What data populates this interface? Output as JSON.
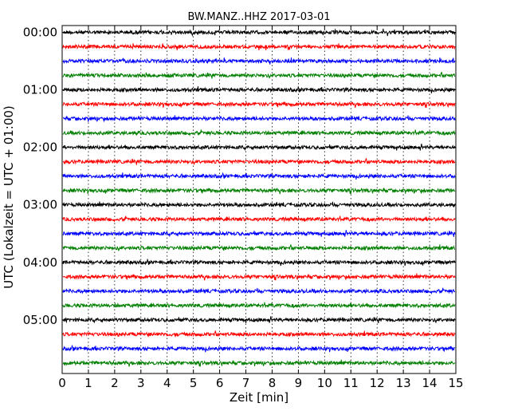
{
  "chart_data": {
    "type": "line",
    "title": "BW.MANZ..HHZ 2017-03-01",
    "xlabel": "Zeit  [min]",
    "ylabel": "UTC (Lokalzeit = UTC + 01:00)",
    "xlim": [
      0,
      15
    ],
    "x_ticks": [
      "0",
      "1",
      "2",
      "3",
      "4",
      "5",
      "6",
      "7",
      "8",
      "9",
      "10",
      "11",
      "12",
      "13",
      "14",
      "15"
    ],
    "y_tick_labels": [
      "00:00",
      "01:00",
      "02:00",
      "03:00",
      "04:00",
      "05:00"
    ],
    "rows_per_hour": 4,
    "row_start_minutes": [
      0,
      15,
      30,
      45,
      60,
      75,
      90,
      105,
      120,
      135,
      150,
      165,
      180,
      195,
      210,
      225,
      240,
      255,
      270,
      285,
      300,
      315,
      330,
      345
    ],
    "row_colors": [
      "#000000",
      "#ff0000",
      "#0000ff",
      "#007f00"
    ],
    "grid": "vertical dotted lines at each minute",
    "amplitude_note": "seismic noise traces, roughly constant small amplitude"
  }
}
